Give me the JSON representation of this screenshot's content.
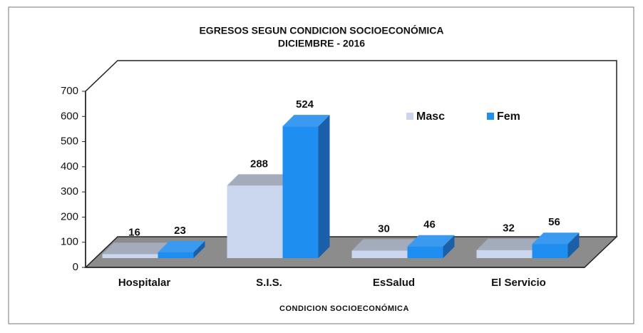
{
  "chart_data": {
    "type": "bar3d",
    "title": "EGRESOS SEGUN CONDICION  SOCIOECONÓMICA",
    "subtitle": "DICIEMBRE - 2016",
    "x_label": "CONDICION SOCIOECONÓMICA",
    "categories": [
      "Hospitalar",
      "S.I.S.",
      "EsSalud",
      "El Servicio"
    ],
    "series": [
      {
        "name": "Masc",
        "color": "#c9d6ee",
        "values": [
          16,
          288,
          30,
          32
        ]
      },
      {
        "name": "Fem",
        "color": "#1f8ef1",
        "values": [
          23,
          524,
          46,
          56
        ]
      }
    ],
    "ylim": [
      0,
      700
    ],
    "yticks": [
      0,
      100,
      200,
      300,
      400,
      500,
      600,
      700
    ]
  }
}
